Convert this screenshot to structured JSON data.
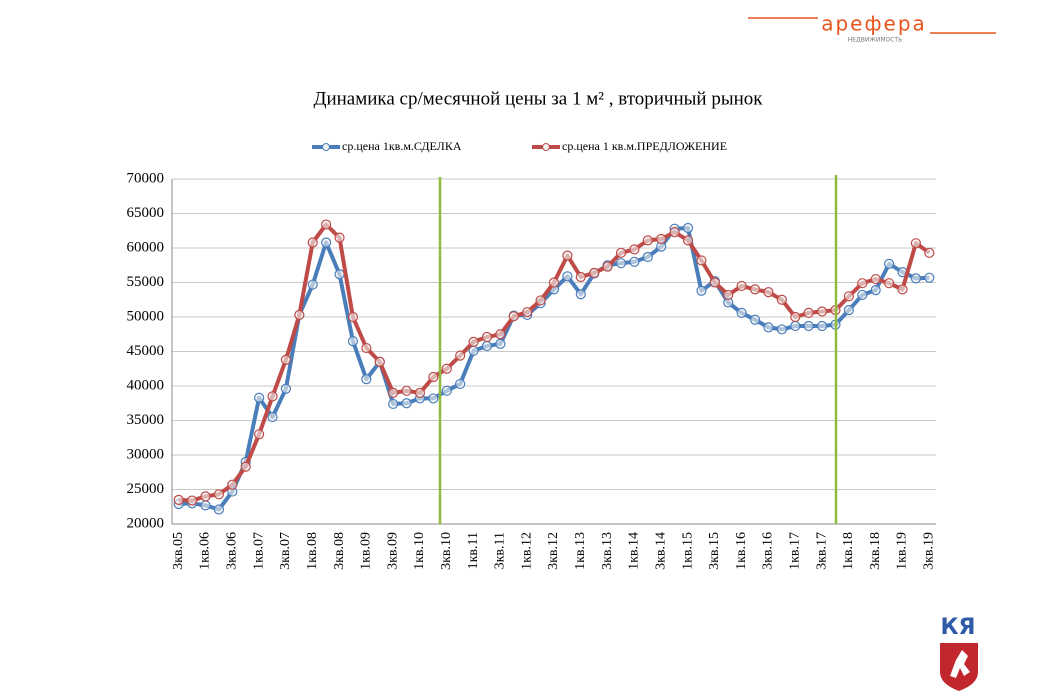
{
  "logo": {
    "brand": "арефера",
    "tagline": "недвижимость",
    "corner": "КЯ"
  },
  "chart_data": {
    "type": "line",
    "title": "Динамика ср/месячной цены за 1 м² , вторичный рынок",
    "categories": [
      "3кв.05",
      null,
      "1кв.06",
      null,
      "3кв.06",
      null,
      "1кв.07",
      null,
      "3кв.07",
      null,
      "1кв.08",
      null,
      "3кв.08",
      null,
      "1кв.09",
      null,
      "3кв.09",
      null,
      "1кв.10",
      null,
      "3кв.10",
      null,
      "1кв.11",
      null,
      "3кв.11",
      null,
      "1кв.12",
      null,
      "3кв.12",
      null,
      "1кв.13",
      null,
      "3кв.13",
      null,
      "1кв.14",
      null,
      "3кв.14",
      null,
      "1кв.15",
      null,
      "3кв.15",
      null,
      "1кв.16",
      null,
      "3кв.16",
      null,
      "1кв.17",
      null,
      "3кв.17",
      null,
      "1кв.18",
      null,
      "3кв.18",
      null,
      "1кв.19",
      null,
      "3кв.19"
    ],
    "series": [
      {
        "name": "ср.цена 1кв.м.СДЕЛКА",
        "color": "#4a7ebb",
        "values": [
          22900,
          23000,
          22700,
          22100,
          24700,
          29000,
          38300,
          35500,
          39600,
          50300,
          54700,
          60800,
          56200,
          46500,
          41000,
          43500,
          37400,
          37500,
          38200,
          38200,
          39300,
          40300,
          45100,
          45800,
          46100,
          50200,
          50300,
          52000,
          54000,
          55900,
          53300,
          56300,
          57500,
          57800,
          58000,
          58700,
          60200,
          62800,
          62900,
          53800,
          55200,
          52100,
          50600,
          49600,
          48500,
          48200,
          48700,
          48700,
          48700,
          48900,
          51000,
          53200,
          53900,
          57700,
          56500,
          55600,
          55700
        ]
      },
      {
        "name": "ср.цена 1 кв.м.ПРЕДЛОЖЕНИЕ",
        "color": "#be4b48",
        "values": [
          23500,
          23400,
          24000,
          24300,
          25700,
          28300,
          33000,
          38500,
          43800,
          50300,
          60800,
          63400,
          61500,
          50000,
          45500,
          43500,
          39000,
          39300,
          39000,
          41300,
          42500,
          44400,
          46400,
          47100,
          47500,
          50100,
          50700,
          52400,
          55000,
          58900,
          55800,
          56400,
          57300,
          59300,
          59800,
          61100,
          61300,
          62300,
          61100,
          58200,
          55000,
          53200,
          54500,
          54000,
          53600,
          52500,
          50000,
          50600,
          50800,
          51000,
          53000,
          54900,
          55500,
          54900,
          54000,
          60700,
          59300
        ]
      }
    ],
    "ylim": [
      20000,
      70000
    ],
    "yticks": [
      20000,
      25000,
      30000,
      35000,
      40000,
      45000,
      50000,
      55000,
      60000,
      65000,
      70000
    ],
    "grid": true
  }
}
